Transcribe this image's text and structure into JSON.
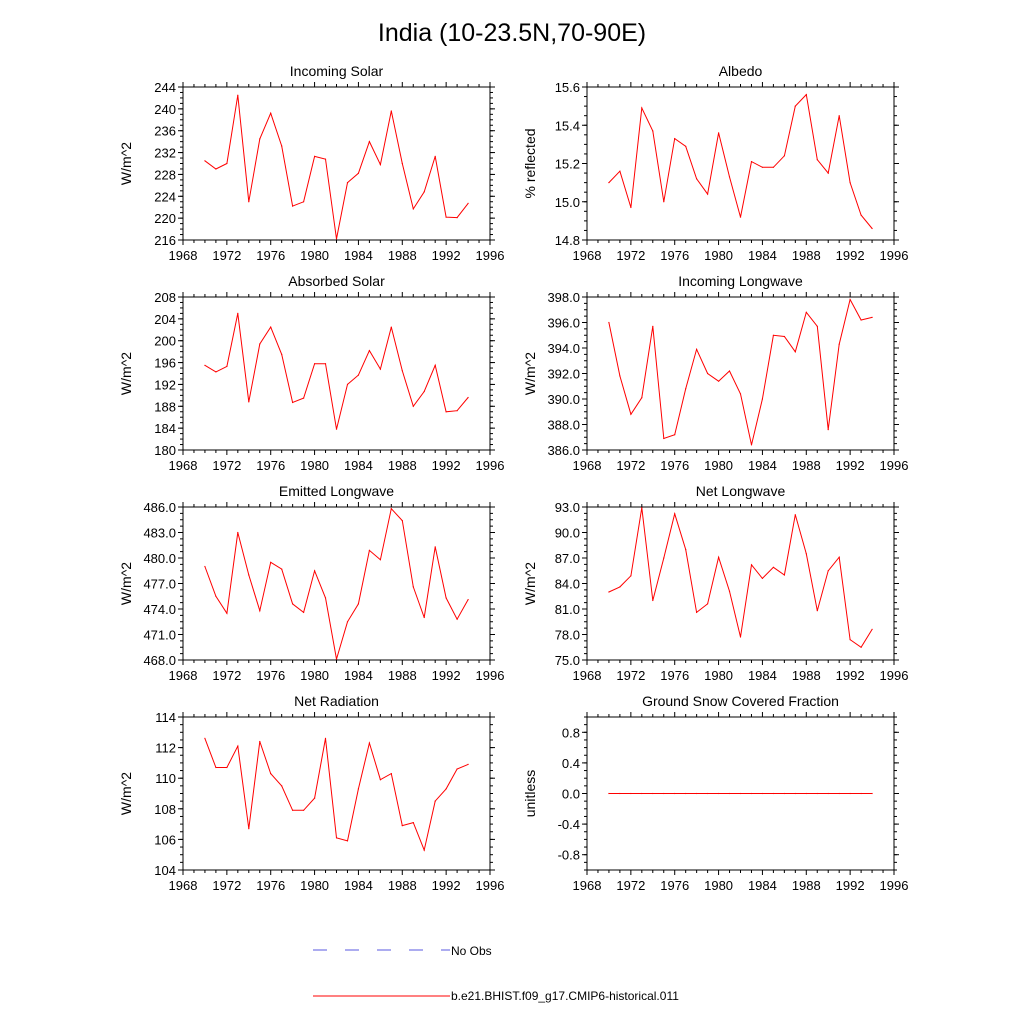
{
  "title": "India (10-23.5N,70-90E)",
  "colors": {
    "model": "#ff0000",
    "obs": "#5a5ae0",
    "axis": "#000000"
  },
  "legend": {
    "obs_label": "No Obs",
    "model_label": "b.e21.BHIST.f09_g17.CMIP6-historical.011"
  },
  "chart_data": [
    {
      "type": "line",
      "title": "Incoming Solar",
      "ylabel": "W/m^2",
      "xlim": [
        1968,
        1996
      ],
      "ylim": [
        216,
        244
      ],
      "xticks": [
        "1968",
        "1972",
        "1976",
        "1980",
        "1984",
        "1988",
        "1992",
        "1996"
      ],
      "yticks": [
        "216",
        "220",
        "224",
        "228",
        "232",
        "236",
        "240",
        "244"
      ],
      "x": [
        1970,
        1971,
        1972,
        1973,
        1974,
        1975,
        1976,
        1977,
        1978,
        1979,
        1980,
        1981,
        1982,
        1983,
        1984,
        1985,
        1986,
        1987,
        1988,
        1989,
        1990,
        1991,
        1992,
        1993,
        1994
      ],
      "series": [
        {
          "values": [
            230.5,
            229.0,
            230.0,
            242.5,
            223.0,
            234.5,
            239.2,
            233.2,
            222.2,
            223.0,
            231.3,
            230.8,
            216.2,
            226.5,
            228.2,
            234.0,
            229.8,
            239.6,
            230.0,
            221.7,
            224.8,
            231.3,
            220.2,
            220.1,
            222.7
          ]
        }
      ]
    },
    {
      "type": "line",
      "title": "Albedo",
      "ylabel": "% reflected",
      "xlim": [
        1968,
        1996
      ],
      "ylim": [
        14.8,
        15.6
      ],
      "xticks": [
        "1968",
        "1972",
        "1976",
        "1980",
        "1984",
        "1988",
        "1992",
        "1996"
      ],
      "yticks": [
        "14.8",
        "15.0",
        "15.2",
        "15.4",
        "15.6"
      ],
      "x": [
        1970,
        1971,
        1972,
        1973,
        1974,
        1975,
        1976,
        1977,
        1978,
        1979,
        1980,
        1981,
        1982,
        1983,
        1984,
        1985,
        1986,
        1987,
        1988,
        1989,
        1990,
        1991,
        1992,
        1993,
        1994
      ],
      "series": [
        {
          "values": [
            15.1,
            15.16,
            14.97,
            15.49,
            15.37,
            15.0,
            15.33,
            15.29,
            15.12,
            15.04,
            15.36,
            15.13,
            14.92,
            15.21,
            15.18,
            15.18,
            15.24,
            15.5,
            15.56,
            15.22,
            15.15,
            15.45,
            15.1,
            14.93,
            14.86
          ]
        }
      ]
    },
    {
      "type": "line",
      "title": "Absorbed Solar",
      "ylabel": "W/m^2",
      "xlim": [
        1968,
        1996
      ],
      "ylim": [
        180,
        208
      ],
      "xticks": [
        "1968",
        "1972",
        "1976",
        "1980",
        "1984",
        "1988",
        "1992",
        "1996"
      ],
      "yticks": [
        "180",
        "184",
        "188",
        "192",
        "196",
        "200",
        "204",
        "208"
      ],
      "x": [
        1970,
        1971,
        1972,
        1973,
        1974,
        1975,
        1976,
        1977,
        1978,
        1979,
        1980,
        1981,
        1982,
        1983,
        1984,
        1985,
        1986,
        1987,
        1988,
        1989,
        1990,
        1991,
        1992,
        1993,
        1994
      ],
      "series": [
        {
          "values": [
            195.5,
            194.3,
            195.3,
            205.0,
            188.8,
            199.4,
            202.5,
            197.5,
            188.7,
            189.5,
            195.8,
            195.8,
            183.8,
            192.0,
            193.7,
            198.2,
            194.8,
            202.5,
            194.5,
            188.0,
            190.7,
            195.5,
            187.0,
            187.2,
            189.6
          ]
        }
      ]
    },
    {
      "type": "line",
      "title": "Incoming Longwave",
      "ylabel": "W/m^2",
      "xlim": [
        1968,
        1996
      ],
      "ylim": [
        386.0,
        398.0
      ],
      "xticks": [
        "1968",
        "1972",
        "1976",
        "1980",
        "1984",
        "1988",
        "1992",
        "1996"
      ],
      "yticks": [
        "386.0",
        "388.0",
        "390.0",
        "392.0",
        "394.0",
        "396.0",
        "398.0"
      ],
      "x": [
        1970,
        1971,
        1972,
        1973,
        1974,
        1975,
        1976,
        1977,
        1978,
        1979,
        1980,
        1981,
        1982,
        1983,
        1984,
        1985,
        1986,
        1987,
        1988,
        1989,
        1990,
        1991,
        1992,
        1993,
        1994
      ],
      "series": [
        {
          "values": [
            396.0,
            391.8,
            388.8,
            390.1,
            395.7,
            386.9,
            387.2,
            390.8,
            393.9,
            392.0,
            391.4,
            392.2,
            390.4,
            386.4,
            390.0,
            395.0,
            394.9,
            393.7,
            396.8,
            395.7,
            387.6,
            394.3,
            397.8,
            396.2,
            396.4
          ]
        }
      ]
    },
    {
      "type": "line",
      "title": "Emitted Longwave",
      "ylabel": "W/m^2",
      "xlim": [
        1968,
        1996
      ],
      "ylim": [
        468.0,
        486.0
      ],
      "xticks": [
        "1968",
        "1972",
        "1976",
        "1980",
        "1984",
        "1988",
        "1992",
        "1996"
      ],
      "yticks": [
        "468.0",
        "471.0",
        "474.0",
        "477.0",
        "480.0",
        "483.0",
        "486.0"
      ],
      "x": [
        1970,
        1971,
        1972,
        1973,
        1974,
        1975,
        1976,
        1977,
        1978,
        1979,
        1980,
        1981,
        1982,
        1983,
        1984,
        1985,
        1986,
        1987,
        1988,
        1989,
        1990,
        1991,
        1992,
        1993,
        1994
      ],
      "series": [
        {
          "values": [
            479.0,
            475.5,
            473.5,
            483.0,
            478.0,
            473.8,
            479.5,
            478.7,
            474.6,
            473.6,
            478.5,
            475.3,
            468.1,
            472.5,
            474.6,
            480.9,
            479.8,
            485.8,
            484.4,
            476.6,
            473.0,
            481.3,
            475.3,
            472.8,
            475.1
          ]
        }
      ]
    },
    {
      "type": "line",
      "title": "Net Longwave",
      "ylabel": "W/m^2",
      "xlim": [
        1968,
        1996
      ],
      "ylim": [
        75.0,
        93.0
      ],
      "xticks": [
        "1968",
        "1972",
        "1976",
        "1980",
        "1984",
        "1988",
        "1992",
        "1996"
      ],
      "yticks": [
        "75.0",
        "78.0",
        "81.0",
        "84.0",
        "87.0",
        "90.0",
        "93.0"
      ],
      "x": [
        1970,
        1971,
        1972,
        1973,
        1974,
        1975,
        1976,
        1977,
        1978,
        1979,
        1980,
        1981,
        1982,
        1983,
        1984,
        1985,
        1986,
        1987,
        1988,
        1989,
        1990,
        1991,
        1992,
        1993,
        1994
      ],
      "series": [
        {
          "values": [
            83.0,
            83.6,
            84.9,
            92.9,
            82.0,
            87.0,
            92.2,
            88.0,
            80.6,
            81.6,
            87.1,
            83.1,
            77.7,
            86.2,
            84.6,
            85.9,
            85.0,
            92.1,
            87.5,
            80.8,
            85.5,
            87.1,
            77.4,
            76.5,
            78.6
          ]
        }
      ]
    },
    {
      "type": "line",
      "title": "Net Radiation",
      "ylabel": "W/m^2",
      "xlim": [
        1968,
        1996
      ],
      "ylim": [
        104,
        114
      ],
      "xticks": [
        "1968",
        "1972",
        "1976",
        "1980",
        "1984",
        "1988",
        "1992",
        "1996"
      ],
      "yticks": [
        "104",
        "106",
        "108",
        "110",
        "112",
        "114"
      ],
      "x": [
        1970,
        1971,
        1972,
        1973,
        1974,
        1975,
        1976,
        1977,
        1978,
        1979,
        1980,
        1981,
        1982,
        1983,
        1984,
        1985,
        1986,
        1987,
        1988,
        1989,
        1990,
        1991,
        1992,
        1993,
        1994
      ],
      "series": [
        {
          "values": [
            112.6,
            110.7,
            110.7,
            112.1,
            106.7,
            112.4,
            110.3,
            109.5,
            107.9,
            107.9,
            108.7,
            112.6,
            106.1,
            105.9,
            109.3,
            112.3,
            109.9,
            110.3,
            106.9,
            107.1,
            105.3,
            108.5,
            109.3,
            110.6,
            110.9
          ]
        }
      ]
    },
    {
      "type": "line",
      "title": "Ground Snow Covered Fraction",
      "ylabel": "unitless",
      "xlim": [
        1968,
        1996
      ],
      "ylim": [
        -1.0,
        1.0
      ],
      "xticks": [
        "1968",
        "1972",
        "1976",
        "1980",
        "1984",
        "1988",
        "1992",
        "1996"
      ],
      "yticks": [
        "-0.8",
        "-0.4",
        "0.0",
        "0.4",
        "0.8"
      ],
      "ytick_values": [
        -0.8,
        -0.4,
        0.0,
        0.4,
        0.8
      ],
      "x": [
        1970,
        1971,
        1972,
        1973,
        1974,
        1975,
        1976,
        1977,
        1978,
        1979,
        1980,
        1981,
        1982,
        1983,
        1984,
        1985,
        1986,
        1987,
        1988,
        1989,
        1990,
        1991,
        1992,
        1993,
        1994
      ],
      "series": [
        {
          "values": [
            0,
            0,
            0,
            0,
            0,
            0,
            0,
            0,
            0,
            0,
            0,
            0,
            0,
            0,
            0,
            0,
            0,
            0,
            0,
            0,
            0,
            0,
            0,
            0,
            0
          ]
        }
      ]
    }
  ]
}
